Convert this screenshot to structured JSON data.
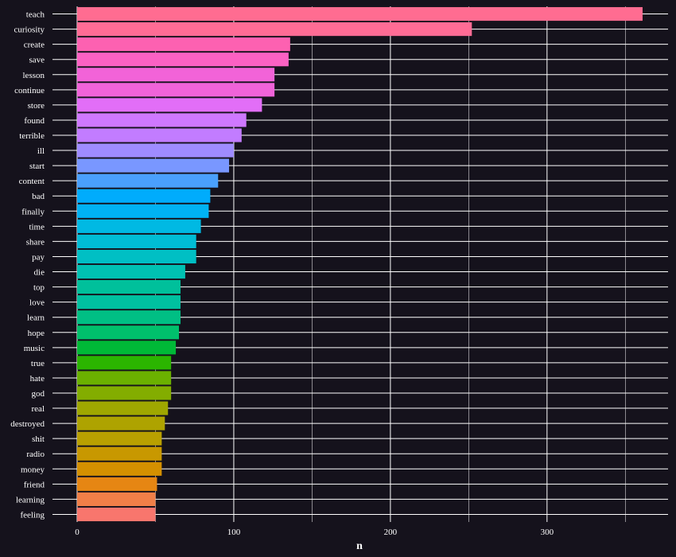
{
  "chart_data": {
    "type": "bar",
    "orientation": "horizontal",
    "title": "",
    "xlabel": "n",
    "ylabel": "",
    "xlim": [
      0,
      370
    ],
    "xticks": [
      0,
      100,
      200,
      300
    ],
    "grid": true,
    "legend": "none",
    "categories": [
      "teach",
      "curiosity",
      "create",
      "save",
      "lesson",
      "continue",
      "store",
      "found",
      "terrible",
      "ill",
      "start",
      "content",
      "bad",
      "finally",
      "time",
      "share",
      "pay",
      "die",
      "top",
      "love",
      "learn",
      "hope",
      "music",
      "true",
      "hate",
      "god",
      "real",
      "destroyed",
      "shit",
      "radio",
      "money",
      "friend",
      "learning",
      "feeling"
    ],
    "values": [
      361,
      252,
      136,
      135,
      126,
      126,
      118,
      108,
      105,
      100,
      97,
      90,
      85,
      84,
      79,
      76,
      76,
      69,
      66,
      66,
      66,
      65,
      63,
      60,
      60,
      60,
      58,
      56,
      54,
      54,
      54,
      51,
      50,
      50
    ],
    "colors": [
      "#ff6c91",
      "#ff6c95",
      "#fd61b1",
      "#fb61c3",
      "#f263d8",
      "#f063d9",
      "#e26ef7",
      "#cf78ff",
      "#c27cff",
      "#9f8cff",
      "#7997ff",
      "#4aa0fd",
      "#00acfc",
      "#00b2f3",
      "#00b9e3",
      "#00bdd5",
      "#00bfc4",
      "#00c1b2",
      "#00c09b",
      "#00c0a0",
      "#00bf84",
      "#00c06c",
      "#00b937",
      "#2bb500",
      "#6bb100",
      "#83ad00",
      "#9fa700",
      "#aea300",
      "#b9a000",
      "#c89800",
      "#d49000",
      "#e68613",
      "#f07f48",
      "#f8766d"
    ]
  }
}
